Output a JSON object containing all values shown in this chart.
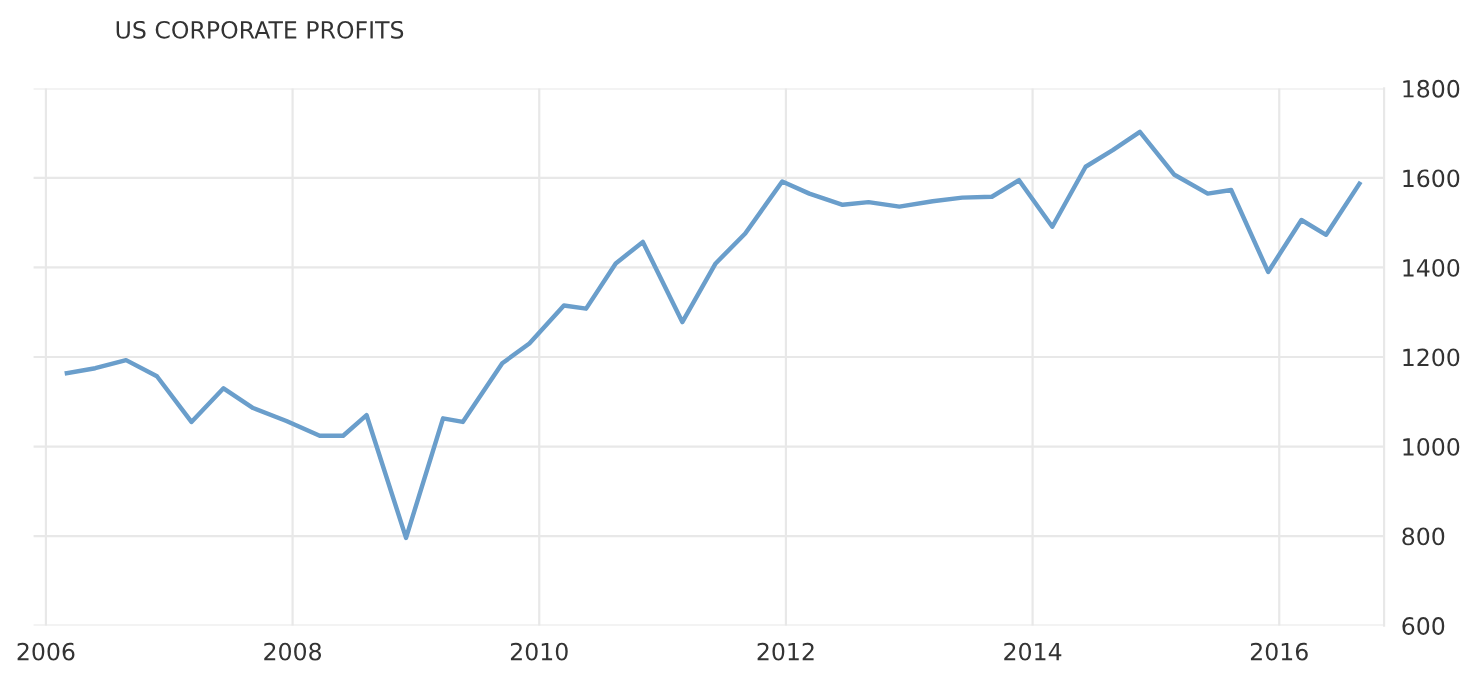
{
  "chart_data": {
    "type": "line",
    "title": "US CORPORATE PROFITS",
    "x": [
      2006.17,
      2006.4,
      2006.65,
      2006.9,
      2007.18,
      2007.44,
      2007.68,
      2007.95,
      2008.22,
      2008.41,
      2008.6,
      2008.92,
      2009.22,
      2009.38,
      2009.7,
      2009.92,
      2010.2,
      2010.38,
      2010.62,
      2010.84,
      2011.16,
      2011.43,
      2011.67,
      2011.97,
      2012.19,
      2012.46,
      2012.67,
      2012.92,
      2013.19,
      2013.43,
      2013.67,
      2013.89,
      2014.16,
      2014.43,
      2014.65,
      2014.87,
      2015.15,
      2015.42,
      2015.61,
      2015.91,
      2016.18,
      2016.38,
      2016.65
    ],
    "series": [
      {
        "color": "#6a9ecb",
        "values": [
          1164,
          1175,
          1193,
          1157,
          1055,
          1130,
          1086,
          1057,
          1024,
          1024,
          1070,
          796,
          1063,
          1055,
          1186,
          1230,
          1315,
          1308,
          1409,
          1457,
          1278,
          1409,
          1476,
          1592,
          1565,
          1540,
          1546,
          1536,
          1548,
          1556,
          1558,
          1595,
          1491,
          1625,
          1662,
          1703,
          1607,
          1565,
          1573,
          1390,
          1506,
          1473,
          1587
        ]
      }
    ],
    "xlim": [
      2005.9,
      2016.85
    ],
    "xticks": [
      2006,
      2008,
      2010,
      2012,
      2014,
      2016
    ],
    "ylim": [
      600,
      1800
    ],
    "yticks": [
      600,
      800,
      1000,
      1200,
      1400,
      1600,
      1800
    ],
    "grid": true,
    "marker": "none",
    "line_style": "solid"
  }
}
